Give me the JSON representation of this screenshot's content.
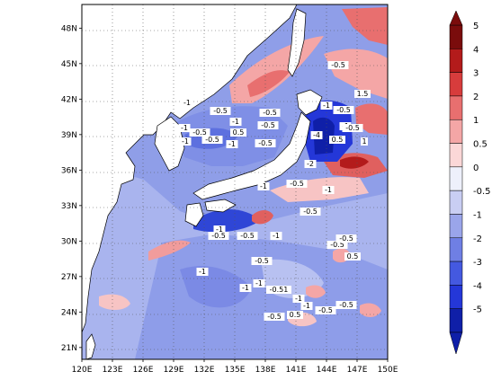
{
  "map": {
    "type": "filled-contour",
    "lon_ticks": [
      "120E",
      "123E",
      "126E",
      "129E",
      "132E",
      "135E",
      "138E",
      "141E",
      "144E",
      "147E",
      "150E"
    ],
    "lat_ticks": [
      "21N",
      "24N",
      "27N",
      "30N",
      "33N",
      "36N",
      "39N",
      "42N",
      "45N",
      "48N"
    ],
    "lon_range": [
      120,
      150
    ],
    "lat_range": [
      20,
      50
    ],
    "grid": "dotted",
    "contour_labels": [
      "-1",
      "-0.5",
      "-1",
      "-0.5",
      "-1",
      "-0.5",
      "0.5",
      "-0.5",
      "-1",
      "-0.5",
      "-1",
      "-0.5",
      "-4",
      "-2",
      "0.5",
      "1",
      "1.5",
      "-0.5",
      "-1",
      "-0.5",
      "-1",
      "-0.5",
      "-1",
      "-0.5",
      "-1",
      "-0.5",
      "-1",
      "-0.5",
      "-0.5",
      "-1",
      "-0.5",
      "-0.5",
      "0.5",
      "-1",
      "-0.5",
      "-1",
      "-0.51",
      "-0.5",
      "-0.5",
      "-1",
      "-1",
      "0.5",
      "-0.5",
      "-1"
    ]
  },
  "colorbar": {
    "labels": [
      "5",
      "4",
      "3",
      "2",
      "1",
      "0.5",
      "0",
      "-0.5",
      "-1",
      "-2",
      "-3",
      "-4",
      "-5"
    ],
    "colors": [
      "#7a0c0c",
      "#b31b1b",
      "#d73c3c",
      "#e86f6f",
      "#f4a6a6",
      "#fbd7d7",
      "#eef0fb",
      "#c9cef3",
      "#9aa5ea",
      "#6f7fe4",
      "#4459e0",
      "#2437d8",
      "#0f1fa8"
    ]
  }
}
